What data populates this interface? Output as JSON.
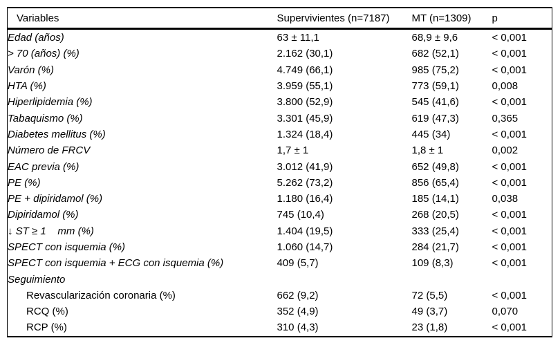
{
  "colors": {
    "background": "#ffffff",
    "text": "#000000",
    "border": "#000000"
  },
  "table": {
    "columns": [
      "Variables",
      "Supervivientes (n=7187)",
      "MT (n=1309)",
      "p"
    ],
    "rows": [
      {
        "label": "Edad (años)",
        "supervivientes": "63 ± 11,1",
        "mt": "68,9 ± 9,6",
        "p": "< 0,001",
        "italic": true,
        "indent": false
      },
      {
        "label": "> 70 (años) (%)",
        "supervivientes": "2.162 (30,1)",
        "mt": "682 (52,1)",
        "p": "< 0,001",
        "italic": true,
        "indent": false
      },
      {
        "label": "Varón (%)",
        "supervivientes": "4.749 (66,1)",
        "mt": "985 (75,2)",
        "p": "< 0,001",
        "italic": true,
        "indent": false
      },
      {
        "label": "HTA (%)",
        "supervivientes": "3.959 (55,1)",
        "mt": "773 (59,1)",
        "p": "0,008",
        "italic": true,
        "indent": false
      },
      {
        "label": "Hiperlipidemia (%)",
        "supervivientes": "3.800 (52,9)",
        "mt": "545 (41,6)",
        "p": "< 0,001",
        "italic": true,
        "indent": false
      },
      {
        "label": "Tabaquismo (%)",
        "supervivientes": "3.301 (45,9)",
        "mt": "619 (47,3)",
        "p": "0,365",
        "italic": true,
        "indent": false
      },
      {
        "label": "Diabetes mellitus (%)",
        "supervivientes": "1.324 (18,4)",
        "mt": "445 (34)",
        "p": "< 0,001",
        "italic": true,
        "indent": false
      },
      {
        "label": "Número de FRCV",
        "supervivientes": "1,7 ± 1",
        "mt": "1,8 ± 1",
        "p": "0,002",
        "italic": true,
        "indent": false
      },
      {
        "label": "EAC previa (%)",
        "supervivientes": "3.012 (41,9)",
        "mt": "652 (49,8)",
        "p": "< 0,001",
        "italic": true,
        "indent": false
      },
      {
        "label": "PE (%)",
        "supervivientes": "5.262 (73,2)",
        "mt": "856 (65,4)",
        "p": "< 0,001",
        "italic": true,
        "indent": false
      },
      {
        "label": "PE + dipiridamol (%)",
        "supervivientes": "1.180 (16,4)",
        "mt": "185 (14,1)",
        "p": "0,038",
        "italic": true,
        "indent": false
      },
      {
        "label": "Dipiridamol (%)",
        "supervivientes": "745 (10,4)",
        "mt": "268 (20,5)",
        "p": "< 0,001",
        "italic": true,
        "indent": false
      },
      {
        "label": "↓ ST ≥ 1    mm (%)",
        "supervivientes": "1.404 (19,5)",
        "mt": "333 (25,4)",
        "p": "< 0,001",
        "italic": true,
        "indent": false
      },
      {
        "label": "SPECT con isquemia (%)",
        "supervivientes": "1.060 (14,7)",
        "mt": "284 (21,7)",
        "p": "< 0,001",
        "italic": true,
        "indent": false
      },
      {
        "label": "SPECT con isquemia + ECG con isquemia (%)",
        "supervivientes": "409 (5,7)",
        "mt": "109 (8,3)",
        "p": "< 0,001",
        "italic": true,
        "indent": false
      },
      {
        "label": "Seguimiento",
        "supervivientes": "",
        "mt": "",
        "p": "",
        "italic": true,
        "indent": false
      },
      {
        "label": "Revascularización coronaria (%)",
        "supervivientes": "662 (9,2)",
        "mt": "72 (5,5)",
        "p": "< 0,001",
        "italic": false,
        "indent": true
      },
      {
        "label": "RCQ (%)",
        "supervivientes": "352 (4,9)",
        "mt": "49 (3,7)",
        "p": "0,070",
        "italic": false,
        "indent": true
      },
      {
        "label": "RCP (%)",
        "supervivientes": "310 (4,3)",
        "mt": "23 (1,8)",
        "p": "< 0,001",
        "italic": false,
        "indent": true
      }
    ]
  }
}
